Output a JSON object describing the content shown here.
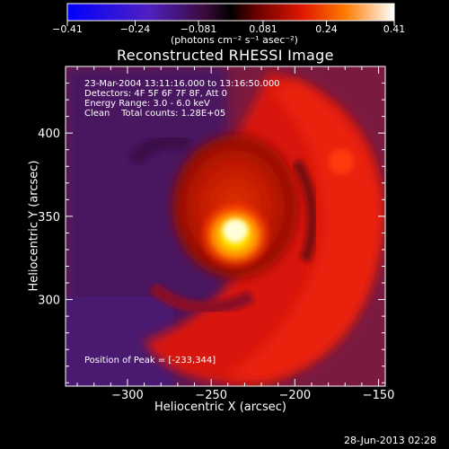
{
  "colorbar": {
    "tick_labels": [
      "-0.41",
      "-0.24",
      "-0.081",
      "0.081",
      "0.24",
      "0.41"
    ],
    "unit_label": "(photons cm⁻² s⁻¹ asec⁻²)",
    "min": -0.41,
    "max": 0.41,
    "colormap": "red-temperature with blue negatives"
  },
  "chart_data": {
    "type": "heatmap",
    "title": "Reconstructed RHESSI Image",
    "xlabel": "Heliocentric X (arcsec)",
    "ylabel": "Heliocentric Y (arcsec)",
    "xlim": [
      -337,
      -146
    ],
    "ylim": [
      248,
      440
    ],
    "x_ticks": [
      -300,
      -250,
      -200,
      -150
    ],
    "y_ticks": [
      300,
      350,
      400
    ],
    "x_tick_labels": [
      "−300",
      "−250",
      "−200",
      "−150"
    ],
    "y_tick_labels": [
      "300",
      "350",
      "400"
    ],
    "annotations": [
      "23-Mar-2004 13:11:16.000 to 13:16:50.000",
      "Detectors: 4F 5F 6F 7F 8F, Att 0",
      "Energy Range: 3.0 - 6.0 keV",
      "Clean    Total counts: 1.28E+05"
    ],
    "peak_label": "Position of Peak = [-233,344]",
    "peak": {
      "x": -233,
      "y": 344,
      "value": 0.41
    },
    "grid": false
  },
  "footer": {
    "timestamp": "28-Jun-2013 02:28"
  }
}
